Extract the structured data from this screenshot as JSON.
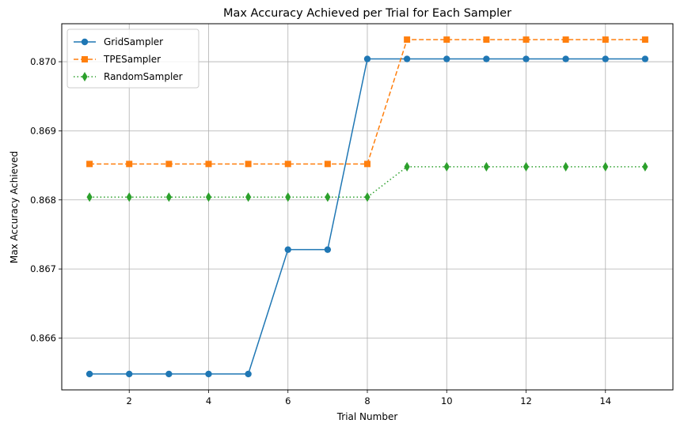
{
  "chart_data": {
    "type": "line",
    "title": "Max Accuracy Achieved per Trial for Each Sampler",
    "xlabel": "Trial Number",
    "ylabel": "Max Accuracy Achieved",
    "xlim": [
      0.3,
      15.7
    ],
    "ylim": [
      0.86525,
      0.87055
    ],
    "xticks": [
      2,
      4,
      6,
      8,
      10,
      12,
      14
    ],
    "yticks": [
      0.866,
      0.867,
      0.868,
      0.869,
      0.87
    ],
    "ytick_labels": [
      "0.866",
      "0.867",
      "0.868",
      "0.869",
      "0.870"
    ],
    "grid": true,
    "legend_position": "upper-left",
    "x": [
      1,
      2,
      3,
      4,
      5,
      6,
      7,
      8,
      9,
      10,
      11,
      12,
      13,
      14,
      15
    ],
    "series": [
      {
        "name": "GridSampler",
        "color": "#1f77b4",
        "line_style": "solid",
        "marker": "circle",
        "values": [
          0.86548,
          0.86548,
          0.86548,
          0.86548,
          0.86548,
          0.86728,
          0.86728,
          0.87004,
          0.87004,
          0.87004,
          0.87004,
          0.87004,
          0.87004,
          0.87004,
          0.87004
        ]
      },
      {
        "name": "TPESampler",
        "color": "#ff7f0e",
        "line_style": "dashed",
        "marker": "square",
        "values": [
          0.86852,
          0.86852,
          0.86852,
          0.86852,
          0.86852,
          0.86852,
          0.86852,
          0.86852,
          0.87032,
          0.87032,
          0.87032,
          0.87032,
          0.87032,
          0.87032,
          0.87032
        ]
      },
      {
        "name": "RandomSampler",
        "color": "#2ca02c",
        "line_style": "dotted",
        "marker": "diamond",
        "values": [
          0.86804,
          0.86804,
          0.86804,
          0.86804,
          0.86804,
          0.86804,
          0.86804,
          0.86804,
          0.86848,
          0.86848,
          0.86848,
          0.86848,
          0.86848,
          0.86848,
          0.86848
        ]
      }
    ]
  }
}
